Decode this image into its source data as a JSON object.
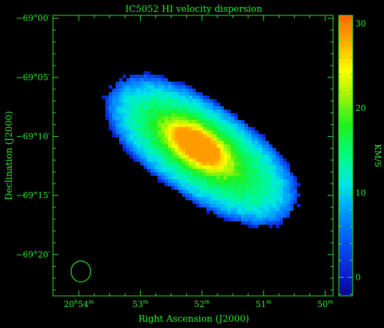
{
  "chart_data": {
    "type": "heatmap",
    "title": "IC5052   HI velocity dispersion",
    "xlabel": "Right Ascension (J2000)",
    "ylabel": "Declination (J2000)",
    "x_ticks": [
      {
        "value_min": 54,
        "h": "20",
        "m": "54"
      },
      {
        "value_min": 53,
        "m": "53"
      },
      {
        "value_min": 52,
        "m": "52"
      },
      {
        "value_min": 51,
        "m": "51"
      },
      {
        "value_min": 50,
        "m": "50"
      }
    ],
    "y_ticks": [
      {
        "value_arcmin": 0,
        "label": "−69°00′"
      },
      {
        "value_arcmin": -5,
        "label": "−69°05′"
      },
      {
        "value_arcmin": -10,
        "label": "−69°10′"
      },
      {
        "value_arcmin": -15,
        "label": "−69°15′"
      },
      {
        "value_arcmin": -20,
        "label": "−69°20′"
      }
    ],
    "x_unit_h": "h",
    "x_unit_m": "m",
    "xlim_min": [
      54.42,
      49.87
    ],
    "ylim_arcmin": [
      -23.5,
      0.25
    ],
    "colorbar": {
      "label": "KM/S",
      "range": [
        -2.2,
        31
      ],
      "ticks": [
        0,
        10,
        20,
        30
      ],
      "colormap": [
        "#05058c",
        "#0a1cc8",
        "#0a50f5",
        "#00a0ff",
        "#00e6e6",
        "#00fa8c",
        "#1ef01e",
        "#a0f50a",
        "#ffff00",
        "#ffb400",
        "#ff6400"
      ],
      "colormap_values": [
        -2.2,
        0,
        4,
        8,
        11,
        14,
        18,
        21.5,
        24.5,
        27.5,
        31
      ]
    },
    "beam": {
      "shape": "ellipse"
    },
    "source": {
      "center_ra_min": 52.0,
      "center_dec_arcmin": -11.2,
      "position_angle_deg": 34,
      "peak_kms": 28.5
    }
  }
}
